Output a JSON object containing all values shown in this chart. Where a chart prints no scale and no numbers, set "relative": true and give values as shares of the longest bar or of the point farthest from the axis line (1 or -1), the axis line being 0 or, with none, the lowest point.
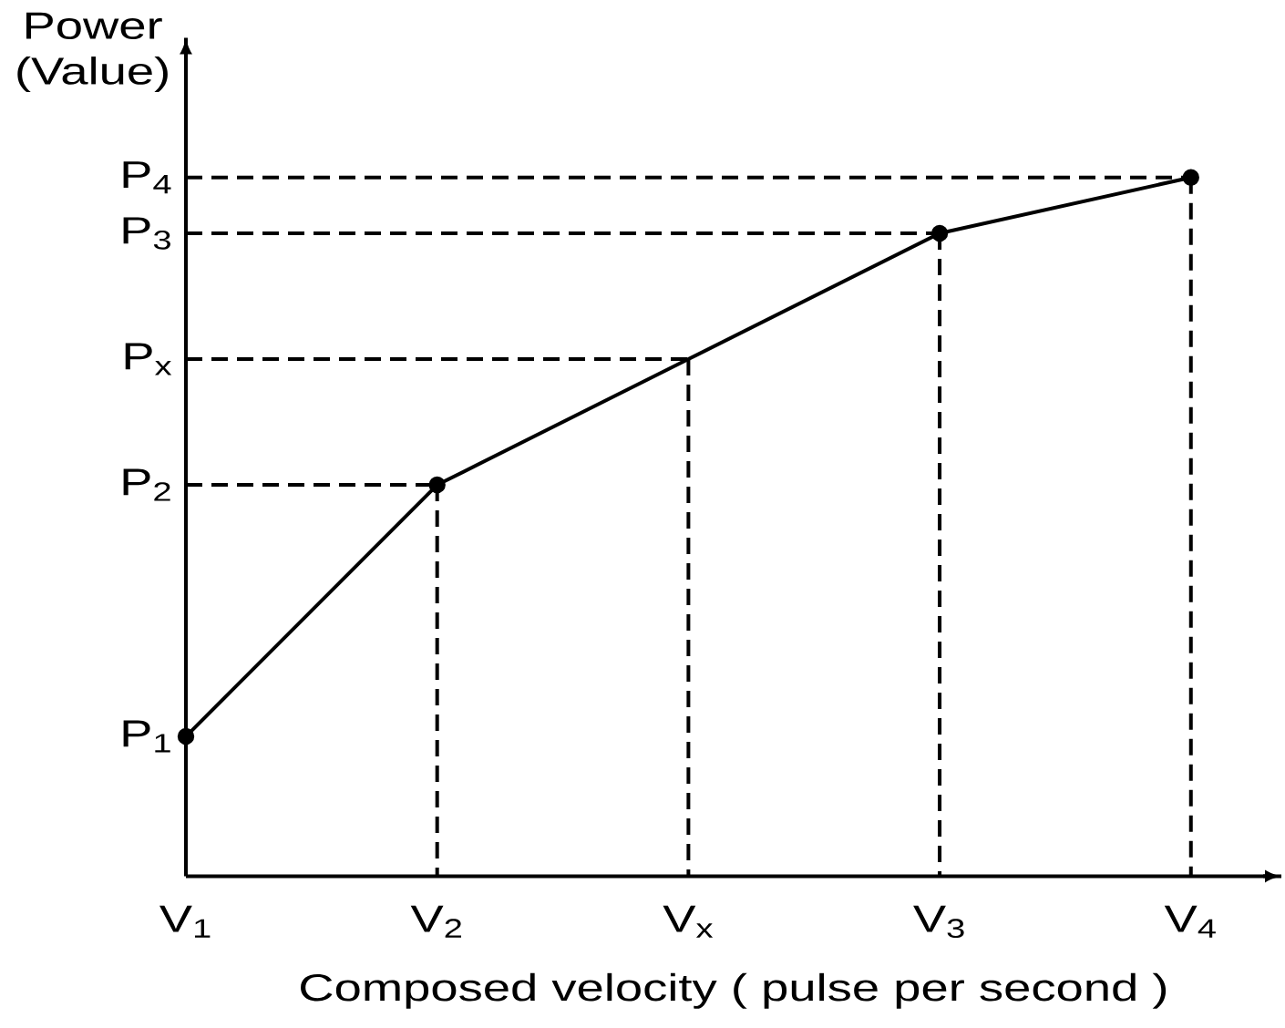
{
  "chart_data": {
    "type": "line",
    "relative": true,
    "xlabel": "Composed velocity ( pulse per second )",
    "ylabel": "Power (Value)",
    "categories": [
      "V$_{1}$",
      "V$_{2}$",
      "V$_{x}$",
      "V$_{3}$",
      "V$_{4}$"
    ],
    "annotations": [
      {
        "text": "P$_{1}$",
        "x": "V$_{1}$",
        "y": 0.2
      },
      {
        "text": "P$_{2}$",
        "x": "V$_{1}$",
        "y": 0.56
      },
      {
        "text": "P$_{x}$",
        "x": "V$_{1}$",
        "y": 0.74
      },
      {
        "text": "P$_{3}$",
        "x": "V$_{1}$",
        "y": 0.92
      },
      {
        "text": "P$_{4}$",
        "x": "V$_{1}$",
        "y": 1
      }
    ],
    "series": [
      {
        "color": "#000000",
        "marker": "none",
        "line_style": "dashed",
        "x": [
          "V$_{1}$",
          "V$_{2}$"
        ],
        "values": [
          0.56,
          0.56
        ]
      },
      {
        "color": "#000000",
        "marker": "none",
        "line_style": "dashed",
        "x": [
          "V$_{2}$",
          "V$_{2}$"
        ],
        "values": [
          0.56,
          0
        ]
      },
      {
        "color": "#000000",
        "marker": "none",
        "line_style": "dashed",
        "x": [
          "V$_{1}$",
          "V$_{x}$"
        ],
        "values": [
          0.74,
          0.74
        ]
      },
      {
        "color": "#000000",
        "marker": "none",
        "line_style": "dashed",
        "x": [
          "V$_{x}$",
          "V$_{x}$"
        ],
        "values": [
          0.74,
          0
        ]
      },
      {
        "color": "#000000",
        "marker": "none",
        "line_style": "dashed",
        "x": [
          "V$_{1}$",
          "V$_{3}$"
        ],
        "values": [
          0.92,
          0.92
        ]
      },
      {
        "color": "#000000",
        "marker": "none",
        "line_style": "dashed",
        "x": [
          "V$_{3}$",
          "V$_{3}$"
        ],
        "values": [
          0.92,
          0
        ]
      },
      {
        "color": "#000000",
        "marker": "none",
        "line_style": "dashed",
        "x": [
          "V$_{1}$",
          "V$_{4}$"
        ],
        "values": [
          1,
          1
        ]
      },
      {
        "color": "#000000",
        "marker": "none",
        "line_style": "dashed",
        "x": [
          "V$_{4}$",
          "V$_{4}$"
        ],
        "values": [
          1,
          0
        ]
      },
      {
        "color": "#000000",
        "marker": "none",
        "line_style": "solid",
        "values": [
          0.2,
          0.56,
          0.74,
          0.92,
          1
        ]
      },
      {
        "type": "scatter",
        "color": "#000000",
        "marker": "circle",
        "values": [
          0.2,
          0.56,
          null,
          0.92,
          1
        ]
      }
    ]
  }
}
